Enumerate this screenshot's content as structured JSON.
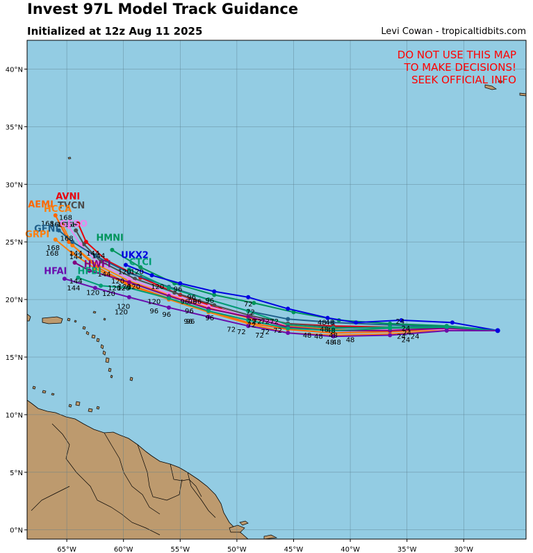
{
  "header": {
    "title": "Invest 97L Model Track Guidance",
    "subtitle": "Initialized at 12z Aug 11 2025",
    "credit": "Levi Cowan - tropicaltidbits.com"
  },
  "warning": {
    "lines": [
      "DO NOT USE THIS MAP",
      "TO MAKE DECISIONS!",
      "SEEK OFFICIAL INFO"
    ],
    "color": "#ff0000"
  },
  "colors": {
    "ocean": "#93cce3",
    "land": "#bd9a6e",
    "grid": "#5a7d8c"
  },
  "axes": {
    "lon_range": [
      -68.5,
      -24.5
    ],
    "lat_range": [
      -0.8,
      42.5
    ],
    "lon_ticks": [
      -65,
      -60,
      -55,
      -50,
      -45,
      -40,
      -35,
      -30
    ],
    "lon_tick_labels": [
      "65°W",
      "60°W",
      "55°W",
      "50°W",
      "45°W",
      "40°W",
      "35°W",
      "30°W"
    ],
    "lat_ticks": [
      0,
      5,
      10,
      15,
      20,
      25,
      30,
      35,
      40
    ],
    "lat_tick_labels": [
      "0°N",
      "5°N",
      "10°N",
      "15°N",
      "20°N",
      "25°N",
      "30°N",
      "35°N",
      "40°N"
    ]
  },
  "chart_data": {
    "type": "map-tracks",
    "origin": [
      -27.0,
      17.3
    ],
    "models": [
      {
        "name": "AVNI",
        "color": "#e8000b",
        "label_pos": [
          -64.9,
          28.7
        ],
        "track": [
          [
            -27.0,
            17.3
          ],
          [
            -31.5,
            17.5
          ],
          [
            -36.5,
            17.6
          ],
          [
            -41.5,
            17.7
          ],
          [
            -45.5,
            17.9
          ],
          [
            -48.5,
            18.3
          ],
          [
            -51.5,
            19.2
          ],
          [
            -55.0,
            20.4
          ],
          [
            -58.5,
            21.9
          ],
          [
            -61.5,
            23.4
          ],
          [
            -63.3,
            25.0
          ],
          [
            -64.0,
            26.6
          ]
        ]
      },
      {
        "name": "AEMI",
        "color": "#ff6600",
        "label_pos": [
          -67.3,
          28.0
        ],
        "track": [
          [
            -27.0,
            17.3
          ],
          [
            -31.5,
            17.4
          ],
          [
            -36.5,
            17.2
          ],
          [
            -41.5,
            17.1
          ],
          [
            -45.5,
            17.4
          ],
          [
            -49.0,
            18.0
          ],
          [
            -52.5,
            19.0
          ],
          [
            -56.0,
            20.1
          ],
          [
            -59.5,
            21.3
          ],
          [
            -62.5,
            22.9
          ],
          [
            -64.8,
            25.0
          ],
          [
            -66.0,
            27.3
          ]
        ]
      },
      {
        "name": "TVCN",
        "color": "#4d4d4d",
        "label_pos": [
          -64.6,
          27.9
        ],
        "track": [
          [
            -27.0,
            17.3
          ],
          [
            -31.5,
            17.5
          ],
          [
            -36.5,
            17.5
          ],
          [
            -41.5,
            17.6
          ],
          [
            -45.5,
            17.9
          ],
          [
            -48.8,
            18.6
          ],
          [
            -52.0,
            19.5
          ],
          [
            -55.5,
            20.6
          ],
          [
            -59.0,
            21.8
          ],
          [
            -62.0,
            23.3
          ],
          [
            -63.5,
            24.8
          ],
          [
            -64.2,
            26.0
          ]
        ]
      },
      {
        "name": "HCCA",
        "color": "#ff7f0e",
        "label_pos": [
          -65.8,
          27.6
        ],
        "track": [
          [
            -27.0,
            17.3
          ],
          [
            -31.5,
            17.4
          ],
          [
            -36.5,
            17.3
          ],
          [
            -41.5,
            17.4
          ],
          [
            -45.5,
            17.7
          ],
          [
            -49.0,
            18.4
          ],
          [
            -52.5,
            19.3
          ],
          [
            -56.0,
            20.4
          ],
          [
            -59.5,
            21.6
          ],
          [
            -62.5,
            23.1
          ],
          [
            -64.5,
            24.7
          ],
          [
            -65.4,
            26.5
          ]
        ]
      },
      {
        "name": "GFSO",
        "color": "#ee82ee",
        "label_pos": [
          -64.4,
          26.3
        ],
        "track": [
          [
            -27.0,
            17.3
          ],
          [
            -31.5,
            17.4
          ],
          [
            -36.5,
            17.4
          ],
          [
            -41.5,
            17.5
          ],
          [
            -45.5,
            17.8
          ],
          [
            -49.0,
            18.5
          ],
          [
            -52.5,
            19.4
          ],
          [
            -56.0,
            20.5
          ],
          [
            -59.5,
            21.8
          ],
          [
            -62.3,
            23.2
          ],
          [
            -63.8,
            24.8
          ],
          [
            -64.8,
            26.3
          ]
        ]
      },
      {
        "name": "GFNI",
        "color": "#1f5f8b",
        "label_pos": [
          -66.8,
          25.9
        ],
        "track": [
          [
            -27.0,
            17.3
          ],
          [
            -31.5,
            17.6
          ],
          [
            -36.5,
            17.8
          ],
          [
            -41.5,
            18.0
          ],
          [
            -45.5,
            18.3
          ],
          [
            -49.0,
            19.0
          ],
          [
            -52.5,
            20.0
          ],
          [
            -56.0,
            21.1
          ],
          [
            -59.5,
            22.3
          ],
          [
            -62.5,
            23.8
          ],
          [
            -64.5,
            25.0
          ],
          [
            -65.7,
            26.0
          ]
        ]
      },
      {
        "name": "GRPI",
        "color": "#ff7f0e",
        "label_pos": [
          -67.6,
          25.4
        ],
        "track": [
          [
            -27.0,
            17.3
          ],
          [
            -31.5,
            17.3
          ],
          [
            -36.5,
            17.0
          ],
          [
            -41.5,
            16.9
          ],
          [
            -45.5,
            17.1
          ],
          [
            -49.0,
            17.9
          ],
          [
            -52.5,
            18.9
          ],
          [
            -56.0,
            20.0
          ],
          [
            -59.5,
            21.2
          ],
          [
            -62.5,
            22.7
          ],
          [
            -64.5,
            24.0
          ],
          [
            -66.0,
            25.2
          ]
        ]
      },
      {
        "name": "HMNI",
        "color": "#00945a",
        "label_pos": [
          -61.2,
          25.1
        ],
        "track": [
          [
            -27.0,
            17.3
          ],
          [
            -31.5,
            17.7
          ],
          [
            -36.5,
            17.9
          ],
          [
            -41.0,
            18.2
          ],
          [
            -45.0,
            18.9
          ],
          [
            -48.5,
            19.7
          ],
          [
            -52.0,
            20.4
          ],
          [
            -55.5,
            21.4
          ],
          [
            -58.5,
            22.8
          ],
          [
            -61.0,
            24.3
          ]
        ]
      },
      {
        "name": "UKX2",
        "color": "#0000e0",
        "label_pos": [
          -59.0,
          23.6
        ],
        "track": [
          [
            -27.0,
            17.3
          ],
          [
            -31.0,
            18.0
          ],
          [
            -35.5,
            18.2
          ],
          [
            -39.5,
            18.0
          ],
          [
            -42.0,
            18.4
          ],
          [
            -45.5,
            19.2
          ],
          [
            -49.0,
            20.2
          ],
          [
            -52.0,
            20.7
          ],
          [
            -55.0,
            21.4
          ],
          [
            -57.5,
            22.1
          ],
          [
            -59.8,
            23.0
          ]
        ]
      },
      {
        "name": "CTCI",
        "color": "#009e73",
        "label_pos": [
          -58.5,
          23.0
        ],
        "track": [
          [
            -27.0,
            17.3
          ],
          [
            -31.5,
            17.6
          ],
          [
            -36.5,
            17.6
          ],
          [
            -41.5,
            17.5
          ],
          [
            -45.5,
            17.8
          ],
          [
            -49.0,
            19.0
          ],
          [
            -52.5,
            20.0
          ],
          [
            -56.0,
            21.0
          ],
          [
            -59.5,
            22.6
          ]
        ]
      },
      {
        "name": "HWFI",
        "color": "#800080",
        "label_pos": [
          -62.3,
          22.8
        ],
        "track": [
          [
            -27.0,
            17.3
          ],
          [
            -31.5,
            17.5
          ],
          [
            -36.5,
            17.3
          ],
          [
            -41.5,
            17.3
          ],
          [
            -45.5,
            17.6
          ],
          [
            -49.0,
            18.5
          ],
          [
            -52.5,
            19.2
          ],
          [
            -56.0,
            20.3
          ],
          [
            -59.5,
            21.5
          ],
          [
            -63.0,
            22.5
          ],
          [
            -64.3,
            23.2
          ]
        ]
      },
      {
        "name": "HFBI",
        "color": "#009e73",
        "label_pos": [
          -63.0,
          22.2
        ],
        "track": [
          [
            -27.0,
            17.3
          ],
          [
            -31.5,
            17.6
          ],
          [
            -36.5,
            17.5
          ],
          [
            -41.5,
            17.3
          ],
          [
            -45.5,
            17.5
          ],
          [
            -49.0,
            18.2
          ],
          [
            -52.5,
            19.0
          ],
          [
            -56.0,
            20.1
          ],
          [
            -59.5,
            21.0
          ],
          [
            -62.0,
            21.2
          ],
          [
            -64.0,
            21.9
          ]
        ]
      },
      {
        "name": "HFAI",
        "color": "#6a0dad",
        "label_pos": [
          -66.0,
          22.2
        ],
        "track": [
          [
            -27.0,
            17.3
          ],
          [
            -31.5,
            17.3
          ],
          [
            -36.5,
            16.9
          ],
          [
            -41.5,
            16.8
          ],
          [
            -45.5,
            17.1
          ],
          [
            -49.0,
            17.7
          ],
          [
            -52.5,
            18.5
          ],
          [
            -56.0,
            19.3
          ],
          [
            -59.5,
            20.2
          ],
          [
            -62.5,
            21.0
          ],
          [
            -65.2,
            21.8
          ]
        ]
      }
    ],
    "hour_labels": [
      {
        "text": "24",
        "lon": -35.6,
        "lat": 17.9
      },
      {
        "text": "24",
        "lon": -35.1,
        "lat": 17.3
      },
      {
        "text": "24",
        "lon": -35.0,
        "lat": 16.9
      },
      {
        "text": "24",
        "lon": -35.5,
        "lat": 16.6
      },
      {
        "text": "24",
        "lon": -34.3,
        "lat": 16.6
      },
      {
        "text": "24",
        "lon": -35.1,
        "lat": 16.3
      },
      {
        "text": "48",
        "lon": -42.5,
        "lat": 17.8
      },
      {
        "text": "48",
        "lon": -41.8,
        "lat": 17.8
      },
      {
        "text": "48",
        "lon": -42.3,
        "lat": 17.2
      },
      {
        "text": "48",
        "lon": -41.7,
        "lat": 17.1
      },
      {
        "text": "48",
        "lon": -43.8,
        "lat": 16.7
      },
      {
        "text": "48",
        "lon": -42.8,
        "lat": 16.6
      },
      {
        "text": "48",
        "lon": -41.5,
        "lat": 16.7
      },
      {
        "text": "48",
        "lon": -41.8,
        "lat": 16.1
      },
      {
        "text": "48",
        "lon": -41.2,
        "lat": 16.1
      },
      {
        "text": "48",
        "lon": -40.0,
        "lat": 16.3
      },
      {
        "text": "72",
        "lon": -49.0,
        "lat": 19.4
      },
      {
        "text": "72",
        "lon": -48.8,
        "lat": 18.7
      },
      {
        "text": "72",
        "lon": -48.7,
        "lat": 17.9
      },
      {
        "text": "72",
        "lon": -48.2,
        "lat": 17.9
      },
      {
        "text": "72",
        "lon": -47.5,
        "lat": 17.9
      },
      {
        "text": "72",
        "lon": -46.7,
        "lat": 17.9
      },
      {
        "text": "72",
        "lon": -48.7,
        "lat": 17.6
      },
      {
        "text": "72",
        "lon": -47.5,
        "lat": 17.0
      },
      {
        "text": "72",
        "lon": -46.4,
        "lat": 17.1
      },
      {
        "text": "72",
        "lon": -50.5,
        "lat": 17.2
      },
      {
        "text": "72",
        "lon": -49.6,
        "lat": 17.0
      },
      {
        "text": "72",
        "lon": -48.0,
        "lat": 16.7
      },
      {
        "text": "96",
        "lon": -55.2,
        "lat": 20.7
      },
      {
        "text": "96",
        "lon": -54.0,
        "lat": 20.0
      },
      {
        "text": "96",
        "lon": -53.9,
        "lat": 19.6
      },
      {
        "text": "96",
        "lon": -54.6,
        "lat": 19.6
      },
      {
        "text": "96",
        "lon": -53.5,
        "lat": 19.6
      },
      {
        "text": "96",
        "lon": -52.4,
        "lat": 19.7
      },
      {
        "text": "96",
        "lon": -54.2,
        "lat": 18.8
      },
      {
        "text": "96",
        "lon": -52.4,
        "lat": 18.2
      },
      {
        "text": "96",
        "lon": -57.3,
        "lat": 18.8
      },
      {
        "text": "96",
        "lon": -56.2,
        "lat": 18.5
      },
      {
        "text": "96",
        "lon": -54.3,
        "lat": 17.9
      },
      {
        "text": "96",
        "lon": -54.1,
        "lat": 17.9
      },
      {
        "text": "120",
        "lon": -59.9,
        "lat": 22.2
      },
      {
        "text": "120",
        "lon": -58.8,
        "lat": 22.2
      },
      {
        "text": "120",
        "lon": -60.5,
        "lat": 21.4
      },
      {
        "text": "120",
        "lon": -59.9,
        "lat": 20.9
      },
      {
        "text": "120",
        "lon": -59.1,
        "lat": 20.9
      },
      {
        "text": "120",
        "lon": -60.8,
        "lat": 20.8
      },
      {
        "text": "120",
        "lon": -60.0,
        "lat": 20.8
      },
      {
        "text": "120",
        "lon": -57.0,
        "lat": 20.9
      },
      {
        "text": "120",
        "lon": -62.7,
        "lat": 20.4
      },
      {
        "text": "120",
        "lon": -61.3,
        "lat": 20.3
      },
      {
        "text": "120",
        "lon": -57.3,
        "lat": 19.6
      },
      {
        "text": "120",
        "lon": -60.0,
        "lat": 19.2
      },
      {
        "text": "120",
        "lon": -60.2,
        "lat": 18.7
      },
      {
        "text": "144",
        "lon": -64.2,
        "lat": 23.8
      },
      {
        "text": "144",
        "lon": -62.7,
        "lat": 23.8
      },
      {
        "text": "144",
        "lon": -62.2,
        "lat": 23.6
      },
      {
        "text": "144",
        "lon": -64.2,
        "lat": 23.5
      },
      {
        "text": "144",
        "lon": -61.7,
        "lat": 22.0
      },
      {
        "text": "144",
        "lon": -64.2,
        "lat": 21.4
      },
      {
        "text": "144",
        "lon": -64.4,
        "lat": 20.8
      },
      {
        "text": "168",
        "lon": -65.1,
        "lat": 26.9
      },
      {
        "text": "168",
        "lon": -66.7,
        "lat": 26.4
      },
      {
        "text": "168",
        "lon": -65.9,
        "lat": 26.3
      },
      {
        "text": "168",
        "lon": -65.3,
        "lat": 26.3
      },
      {
        "text": "168",
        "lon": -64.7,
        "lat": 26.3
      },
      {
        "text": "168",
        "lon": -64.5,
        "lat": 26.3
      },
      {
        "text": "168",
        "lon": -65.0,
        "lat": 25.1
      },
      {
        "text": "168",
        "lon": -66.2,
        "lat": 24.3
      },
      {
        "text": "168",
        "lon": -66.3,
        "lat": 23.8
      }
    ]
  }
}
